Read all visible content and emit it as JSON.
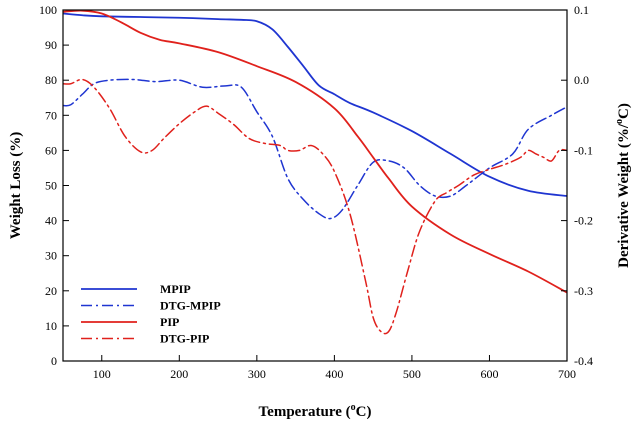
{
  "chart_data": {
    "type": "line",
    "title": "",
    "xlabel": "Temperature (°C)",
    "xlabel_parts": {
      "before": "Temperature (",
      "sup": "o",
      "after": "C)"
    },
    "ylabel_left": "Weight Loss (%)",
    "ylabel_right": "Derivative Weight (%/°C)",
    "ylabel_right_parts": {
      "before": "Derivative Weight (%/",
      "sup": "o",
      "after": "C)"
    },
    "xlim": [
      50,
      700
    ],
    "ylim_left": [
      0,
      100
    ],
    "ylim_right": [
      -0.4,
      0.1
    ],
    "x_ticks": [
      100,
      200,
      300,
      400,
      500,
      600,
      700
    ],
    "x_tick_labels": [
      "100",
      "200",
      "300",
      "400",
      "500",
      "600",
      "700"
    ],
    "y_left_ticks": [
      0,
      10,
      20,
      30,
      40,
      50,
      60,
      70,
      80,
      90,
      100
    ],
    "y_left_tick_labels": [
      "0",
      "10",
      "20",
      "30",
      "40",
      "50",
      "60",
      "70",
      "80",
      "90",
      "100"
    ],
    "y_right_ticks": [
      -0.4,
      -0.3,
      -0.2,
      -0.1,
      0.0,
      0.1
    ],
    "y_right_tick_labels": [
      "-0.4",
      "-0.3",
      "-0.2",
      "-0.1",
      "0.0",
      "0.1"
    ],
    "grid": false,
    "legend_position": "bottom-left",
    "series": [
      {
        "name": "MPIP",
        "axis": "left",
        "color": "#1f35d1",
        "style": "solid",
        "x": [
          50,
          75,
          100,
          150,
          200,
          250,
          280,
          300,
          320,
          340,
          360,
          380,
          400,
          420,
          450,
          500,
          550,
          600,
          650,
          700
        ],
        "y": [
          99.0,
          98.5,
          98.2,
          98.0,
          97.8,
          97.4,
          97.2,
          96.8,
          94.5,
          89.5,
          84.0,
          78.5,
          76.0,
          73.5,
          70.8,
          65.5,
          59.0,
          52.5,
          48.5,
          47.0
        ]
      },
      {
        "name": "DTG-MPIP",
        "axis": "right",
        "color": "#1f35d1",
        "style": "dashdot",
        "x": [
          50,
          60,
          75,
          90,
          110,
          140,
          170,
          200,
          230,
          260,
          280,
          300,
          320,
          340,
          360,
          380,
          395,
          410,
          430,
          450,
          470,
          490,
          510,
          530,
          550,
          570,
          600,
          630,
          650,
          680,
          700
        ],
        "y": [
          -0.036,
          -0.035,
          -0.02,
          -0.005,
          0.0,
          0.001,
          -0.002,
          0.0,
          -0.01,
          -0.008,
          -0.01,
          -0.045,
          -0.08,
          -0.14,
          -0.17,
          -0.19,
          -0.197,
          -0.185,
          -0.15,
          -0.117,
          -0.115,
          -0.125,
          -0.15,
          -0.165,
          -0.165,
          -0.15,
          -0.125,
          -0.105,
          -0.07,
          -0.05,
          -0.038
        ]
      },
      {
        "name": "PIP",
        "axis": "left",
        "color": "#e0211c",
        "style": "solid",
        "x": [
          50,
          75,
          100,
          125,
          150,
          175,
          200,
          250,
          300,
          350,
          400,
          430,
          450,
          470,
          500,
          550,
          600,
          650,
          700
        ],
        "y": [
          99.5,
          99.8,
          99.0,
          96.5,
          93.5,
          91.5,
          90.5,
          88.0,
          84.0,
          79.5,
          72.0,
          64.0,
          58.0,
          52.0,
          44.0,
          36.0,
          30.5,
          25.5,
          19.5
        ]
      },
      {
        "name": "DTG-PIP",
        "axis": "right",
        "color": "#e0211c",
        "style": "dashdot",
        "x": [
          50,
          60,
          75,
          90,
          110,
          130,
          150,
          165,
          180,
          200,
          220,
          235,
          250,
          270,
          290,
          310,
          330,
          340,
          355,
          370,
          385,
          400,
          420,
          440,
          450,
          460,
          470,
          480,
          495,
          510,
          530,
          545,
          560,
          580,
          600,
          620,
          640,
          650,
          660,
          670,
          680,
          690,
          700
        ],
        "y": [
          -0.005,
          -0.005,
          0.001,
          -0.01,
          -0.04,
          -0.08,
          -0.102,
          -0.1,
          -0.083,
          -0.062,
          -0.045,
          -0.037,
          -0.047,
          -0.063,
          -0.083,
          -0.09,
          -0.093,
          -0.1,
          -0.1,
          -0.093,
          -0.105,
          -0.13,
          -0.19,
          -0.285,
          -0.338,
          -0.358,
          -0.358,
          -0.33,
          -0.27,
          -0.215,
          -0.172,
          -0.16,
          -0.15,
          -0.135,
          -0.127,
          -0.12,
          -0.11,
          -0.1,
          -0.105,
          -0.11,
          -0.115,
          -0.1,
          -0.1
        ]
      }
    ]
  }
}
